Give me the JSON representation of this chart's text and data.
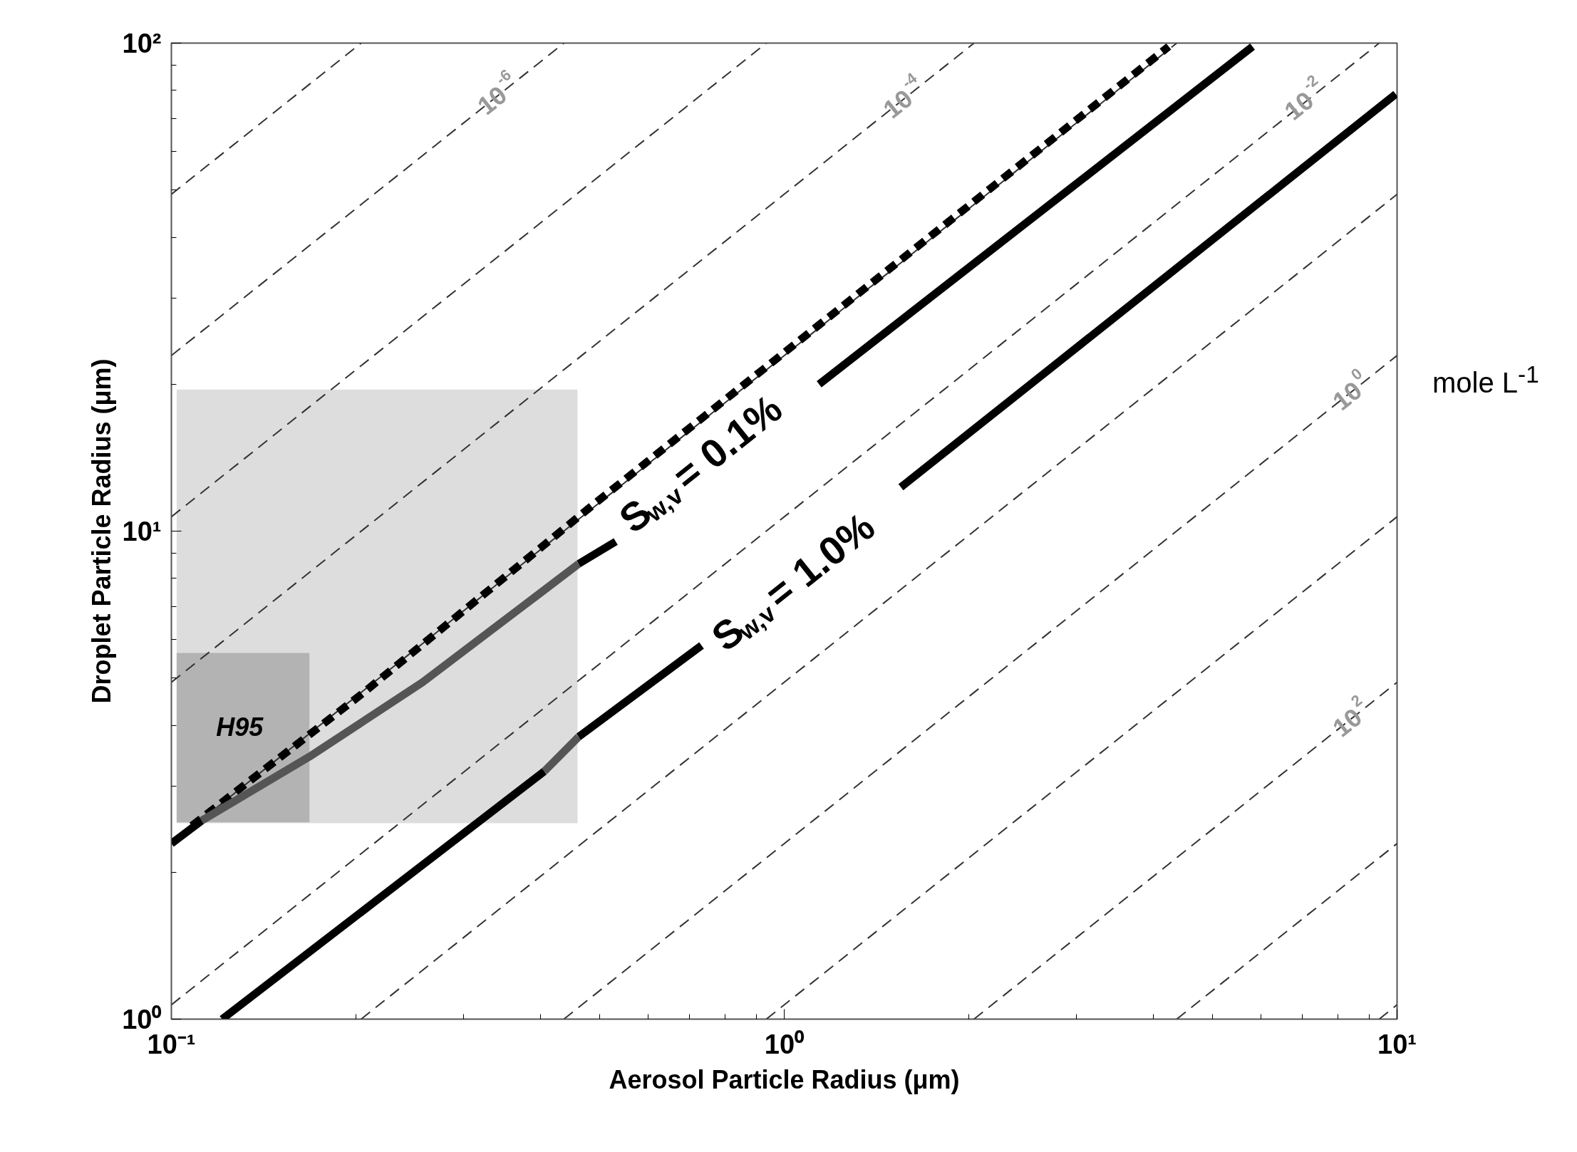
{
  "chart_data": {
    "type": "line",
    "xlabel": "Aerosol Particle Radius (μm)",
    "ylabel": "Droplet Particle Radius (μm)",
    "log": "xy",
    "xlim": [
      0.1,
      10
    ],
    "ylim": [
      1,
      100
    ],
    "xticks": [
      {
        "value": 0.1,
        "label": "10⁻¹"
      },
      {
        "value": 1,
        "label": "10⁰"
      },
      {
        "value": 10,
        "label": "10¹"
      }
    ],
    "yticks": [
      {
        "value": 1,
        "label": "10⁰"
      },
      {
        "value": 10,
        "label": "10¹"
      },
      {
        "value": 100,
        "label": "10²"
      }
    ],
    "grid": false,
    "series": [
      {
        "type": "area",
        "color": "#dddddd",
        "x": [
          0.102,
          0.102,
          0.46,
          0.46
        ],
        "values": [
          2.52,
          19.5,
          19.5,
          2.52
        ]
      },
      {
        "type": "area",
        "color": "#b3b3b3",
        "x": [
          0.102,
          0.102,
          0.168,
          0.168
        ],
        "values": [
          2.53,
          5.63,
          5.63,
          2.53
        ]
      },
      {
        "line_style": "dashed",
        "color": "#333333",
        "x": [
          0.1,
          0.204
        ],
        "values": [
          49,
          100
        ]
      },
      {
        "line_style": "dashed",
        "color": "#333333",
        "x": [
          0.1,
          0.437
        ],
        "values": [
          22.9,
          100
        ]
      },
      {
        "line_style": "dashed",
        "color": "#333333",
        "x": [
          0.1,
          0.935
        ],
        "values": [
          10.7,
          100
        ]
      },
      {
        "line_style": "dashed",
        "color": "#333333",
        "x": [
          0.1,
          2.04
        ],
        "values": [
          4.9,
          100
        ]
      },
      {
        "line_style": "dashed",
        "color": "#333333",
        "x": [
          0.1,
          4.37
        ],
        "values": [
          2.29,
          100
        ]
      },
      {
        "line_style": "dashed",
        "color": "#333333",
        "x": [
          0.1,
          9.35
        ],
        "values": [
          1.07,
          100
        ]
      },
      {
        "line_style": "dashed",
        "color": "#333333",
        "x": [
          0.204,
          10
        ],
        "values": [
          1,
          49
        ]
      },
      {
        "line_style": "dashed",
        "color": "#333333",
        "x": [
          0.437,
          10
        ],
        "values": [
          1,
          22.9
        ]
      },
      {
        "line_style": "dashed",
        "color": "#333333",
        "x": [
          0.935,
          10
        ],
        "values": [
          1,
          10.7
        ]
      },
      {
        "line_style": "dashed",
        "color": "#333333",
        "x": [
          2.04,
          10
        ],
        "values": [
          1,
          4.9
        ]
      },
      {
        "line_style": "dashed",
        "color": "#333333",
        "x": [
          4.37,
          10
        ],
        "values": [
          1,
          2.29
        ]
      },
      {
        "line_style": "dashed",
        "color": "#333333",
        "x": [
          9.35,
          10
        ],
        "values": [
          1,
          1.07
        ]
      },
      {
        "line_style": "dashed",
        "color": "#000000",
        "x": [
          0.108,
          0.206,
          0.489,
          4.24
        ],
        "values": [
          2.49,
          4.67,
          11.35,
          98.4
        ]
      },
      {
        "line_style": "solid",
        "color": "#000000",
        "x": [
          0.1,
          0.112
        ],
        "values": [
          2.29,
          2.55
        ]
      },
      {
        "line_style": "solid",
        "color": "#555555",
        "x": [
          0.112,
          0.168,
          0.257,
          0.371,
          0.462
        ],
        "values": [
          2.55,
          3.45,
          4.9,
          6.95,
          8.57
        ]
      },
      {
        "line_style": "solid",
        "color": "#000000",
        "x": [
          0.462,
          0.531,
          0.8,
          1.14,
          5.81
        ],
        "values": [
          8.57,
          9.52,
          null,
          20.0,
          98.4
        ]
      },
      {
        "line_style": "solid",
        "color": "#000000",
        "x": [
          0.121,
          0.406
        ],
        "values": [
          1.0,
          3.22
        ]
      },
      {
        "line_style": "solid",
        "color": "#555555",
        "x": [
          0.406,
          0.462
        ],
        "values": [
          3.22,
          3.79
        ]
      },
      {
        "line_style": "solid",
        "color": "#000000",
        "x": [
          0.462,
          0.733,
          1.1,
          1.55,
          9.95
        ],
        "values": [
          3.79,
          5.83,
          null,
          12.3,
          78.6
        ]
      }
    ],
    "annotations": [
      {
        "text": "10$^{-6}$",
        "x": 0.344,
        "y": 78.9
      },
      {
        "text": "10$^{-4}$",
        "x": 1.58,
        "y": 77.6
      },
      {
        "text": "10$^{-2}$",
        "x": 7.13,
        "y": 76.9
      },
      {
        "text": "10$^{0}$",
        "x": 8.43,
        "y": 19.3
      },
      {
        "text": "10$^{2}$",
        "x": 8.43,
        "y": 4.13
      },
      "S$_{w,v}$= 0.1%",
      "S$_{w,v}$= 1.0%",
      "H95",
      "mole L$^{-1}$"
    ]
  }
}
